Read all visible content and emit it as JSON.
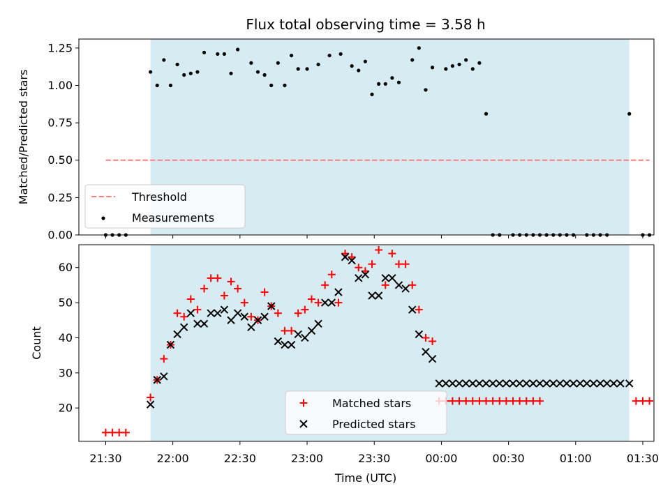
{
  "chart_data": {
    "type": "scatter",
    "title": "Flux total observing time = 3.58 h",
    "xlabel": "Time (UTC)",
    "x_tick_labels": [
      "21:30",
      "22:00",
      "22:30",
      "23:00",
      "23:30",
      "00:00",
      "00:30",
      "01:00",
      "01:30"
    ],
    "observing_window": {
      "start": "21:50",
      "end": "01:24"
    },
    "panels": [
      {
        "ylabel": "Matched/Predicted stars",
        "ylim": [
          0.0,
          1.31
        ],
        "y_ticks": [
          "0.00",
          "0.25",
          "0.50",
          "0.75",
          "1.00",
          "1.25"
        ],
        "legend": "lower-left",
        "series": [
          {
            "name": "Threshold",
            "type": "line",
            "style": "dashed",
            "color": "#ff7f7f",
            "x": [
              "21:30",
              "01:33"
            ],
            "y": [
              0.5,
              0.5
            ]
          },
          {
            "name": "Measurements",
            "type": "scatter",
            "marker": "dot",
            "color": "#000000",
            "x": [
              "21:30",
              "21:33",
              "21:36",
              "21:39",
              "21:50",
              "21:53",
              "21:56",
              "21:59",
              "22:02",
              "22:05",
              "22:08",
              "22:11",
              "22:14",
              "22:20",
              "22:23",
              "22:26",
              "22:29",
              "22:35",
              "22:38",
              "22:41",
              "22:44",
              "22:47",
              "22:50",
              "22:53",
              "22:56",
              "23:00",
              "23:05",
              "23:10",
              "23:15",
              "23:20",
              "23:23",
              "23:26",
              "23:29",
              "23:32",
              "23:35",
              "23:38",
              "23:41",
              "23:47",
              "23:50",
              "23:53",
              "23:56",
              "00:02",
              "00:05",
              "00:08",
              "00:11",
              "00:14",
              "00:17",
              "00:20",
              "00:23",
              "00:26",
              "00:32",
              "00:35",
              "00:38",
              "00:41",
              "00:44",
              "00:47",
              "00:50",
              "00:53",
              "00:56",
              "00:59",
              "01:05",
              "01:08",
              "01:11",
              "01:14",
              "01:24",
              "01:30",
              "01:33"
            ],
            "y": [
              0.0,
              0.0,
              0.0,
              0.0,
              1.09,
              1.0,
              1.17,
              1.0,
              1.14,
              1.07,
              1.08,
              1.09,
              1.22,
              1.21,
              1.21,
              1.08,
              1.24,
              1.15,
              1.09,
              1.07,
              1.0,
              1.15,
              1.0,
              1.2,
              1.11,
              1.11,
              1.14,
              1.2,
              1.21,
              1.13,
              1.1,
              1.16,
              0.94,
              1.01,
              1.01,
              1.05,
              1.02,
              1.17,
              1.25,
              0.97,
              1.12,
              1.11,
              1.13,
              1.14,
              1.17,
              1.11,
              1.15,
              0.81,
              0.0,
              0.0,
              0.0,
              0.0,
              0.0,
              0.0,
              0.0,
              0.0,
              0.0,
              0.0,
              0.0,
              0.0,
              0.0,
              0.0,
              0.0,
              0.0,
              0.81,
              0.0,
              0.0
            ]
          }
        ]
      },
      {
        "ylabel": "Count",
        "ylim": [
          10.5,
          66.5
        ],
        "y_ticks": [
          "20",
          "30",
          "40",
          "50",
          "60"
        ],
        "legend": "lower-center",
        "series": [
          {
            "name": "Matched stars",
            "type": "scatter",
            "marker": "plus",
            "color": "#ff0000",
            "x": [
              "21:30",
              "21:33",
              "21:36",
              "21:39",
              "21:50",
              "21:53",
              "21:56",
              "21:59",
              "22:02",
              "22:05",
              "22:08",
              "22:11",
              "22:14",
              "22:17",
              "22:20",
              "22:23",
              "22:26",
              "22:29",
              "22:32",
              "22:35",
              "22:38",
              "22:41",
              "22:44",
              "22:47",
              "22:50",
              "22:53",
              "22:56",
              "22:59",
              "23:02",
              "23:05",
              "23:08",
              "23:11",
              "23:14",
              "23:17",
              "23:20",
              "23:23",
              "23:26",
              "23:29",
              "23:32",
              "23:35",
              "23:38",
              "23:41",
              "23:44",
              "23:47",
              "23:50",
              "23:53",
              "23:56",
              "23:59",
              "00:02",
              "00:05",
              "00:08",
              "00:11",
              "00:14",
              "00:17",
              "00:20",
              "00:23",
              "00:26",
              "00:29",
              "00:32",
              "00:35",
              "00:38",
              "00:41",
              "00:44",
              "01:27",
              "01:30",
              "01:33"
            ],
            "y": [
              13,
              13,
              13,
              13,
              23,
              28,
              34,
              38,
              47,
              46,
              51,
              48,
              54,
              57,
              57,
              52,
              56,
              54,
              50,
              46,
              45,
              53,
              49,
              47,
              42,
              42,
              47,
              48,
              51,
              50,
              55,
              58,
              50,
              64,
              63,
              60,
              59,
              61,
              65,
              55,
              64,
              61,
              61,
              55,
              48,
              40,
              39,
              22,
              22,
              22,
              22,
              22,
              22,
              22,
              22,
              22,
              22,
              22,
              22,
              22,
              22,
              22,
              22,
              22,
              22,
              22
            ]
          },
          {
            "name": "Predicted stars",
            "type": "scatter",
            "marker": "x",
            "color": "#000000",
            "x": [
              "21:50",
              "21:53",
              "21:56",
              "21:59",
              "22:02",
              "22:05",
              "22:08",
              "22:11",
              "22:14",
              "22:17",
              "22:20",
              "22:23",
              "22:26",
              "22:29",
              "22:32",
              "22:35",
              "22:38",
              "22:41",
              "22:44",
              "22:47",
              "22:50",
              "22:53",
              "22:56",
              "22:59",
              "23:02",
              "23:05",
              "23:08",
              "23:11",
              "23:14",
              "23:17",
              "23:20",
              "23:23",
              "23:26",
              "23:29",
              "23:32",
              "23:35",
              "23:38",
              "23:41",
              "23:44",
              "23:47",
              "23:50",
              "23:53",
              "23:56",
              "23:59",
              "00:02",
              "00:05",
              "00:08",
              "00:11",
              "00:14",
              "00:17",
              "00:20",
              "00:23",
              "00:26",
              "00:29",
              "00:32",
              "00:35",
              "00:38",
              "00:41",
              "00:44",
              "00:47",
              "00:50",
              "00:53",
              "00:56",
              "00:59",
              "01:02",
              "01:05",
              "01:08",
              "01:11",
              "01:14",
              "01:17",
              "01:20",
              "01:24"
            ],
            "y": [
              21,
              28,
              29,
              38,
              41,
              43,
              47,
              44,
              44,
              47,
              47,
              48,
              45,
              47,
              46,
              43,
              45,
              46,
              49,
              39,
              38,
              38,
              41,
              40,
              42,
              44,
              50,
              50,
              53,
              63,
              62,
              57,
              58,
              52,
              52,
              57,
              57,
              55,
              54,
              48,
              41,
              36,
              34,
              27,
              27,
              27,
              27,
              27,
              27,
              27,
              27,
              27,
              27,
              27,
              27,
              27,
              27,
              27,
              27,
              27,
              27,
              27,
              27,
              27,
              27,
              27,
              27,
              27,
              27,
              27,
              27,
              27
            ]
          }
        ]
      }
    ]
  }
}
